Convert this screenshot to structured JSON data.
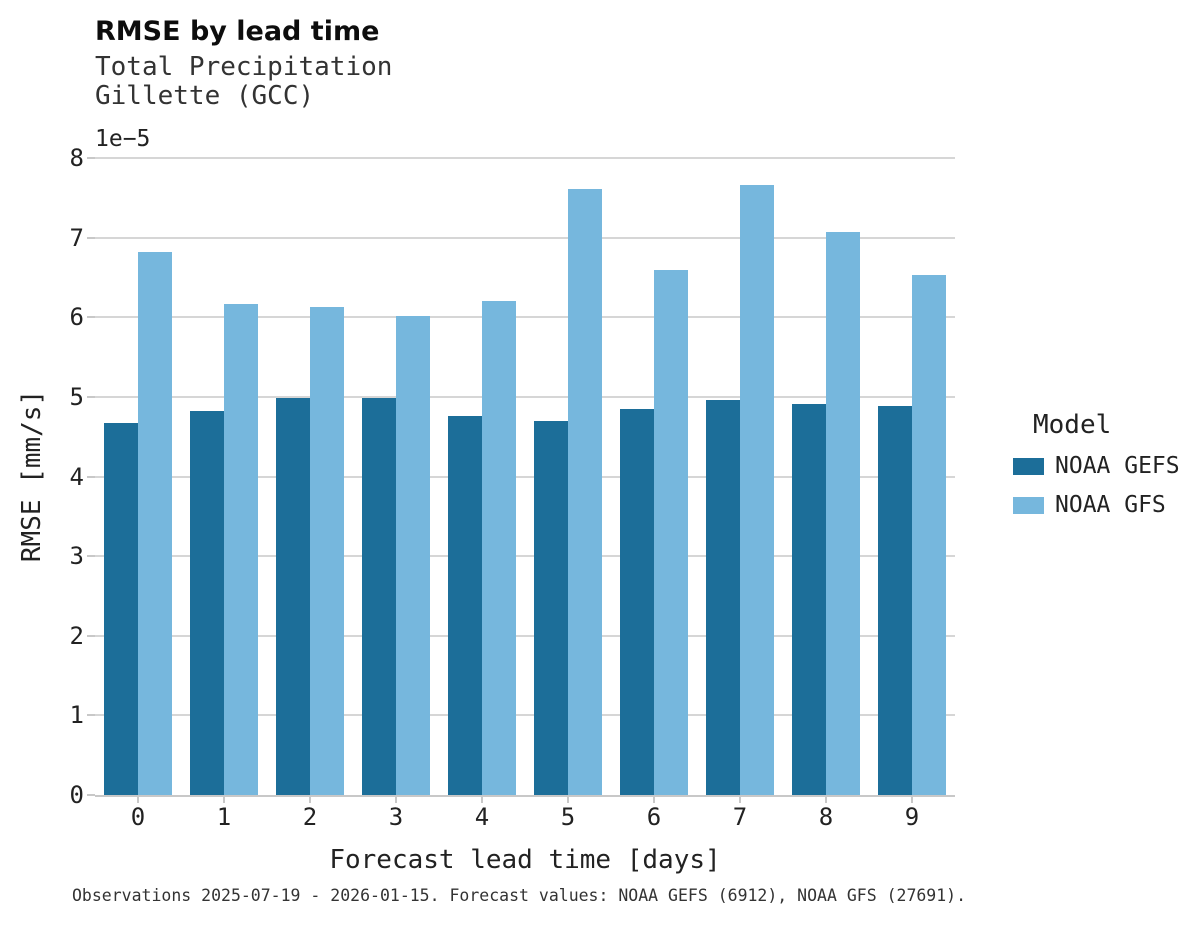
{
  "header": {
    "title": "RMSE by lead time",
    "subtitle_line1": "Total Precipitation",
    "subtitle_line2": "Gillette (GCC)"
  },
  "chart_data": {
    "type": "bar",
    "title": "RMSE by lead time",
    "subtitle": [
      "Total Precipitation",
      "Gillette (GCC)"
    ],
    "xlabel": "Forecast lead time [days]",
    "ylabel": "RMSE [mm/s]",
    "y_offset_label": "1e−5",
    "value_scale": "1e-5",
    "ylim": [
      0,
      8
    ],
    "yticks": [
      0,
      1,
      2,
      3,
      4,
      5,
      6,
      7,
      8
    ],
    "grid": true,
    "categories": [
      "0",
      "1",
      "2",
      "3",
      "4",
      "5",
      "6",
      "7",
      "8",
      "9"
    ],
    "series": [
      {
        "name": "NOAA GEFS",
        "color": "#1c6e99",
        "values": [
          4.67,
          4.82,
          4.99,
          4.98,
          4.76,
          4.7,
          4.85,
          4.96,
          4.91,
          4.88
        ]
      },
      {
        "name": "NOAA GFS",
        "color": "#76b7dd",
        "values": [
          6.82,
          6.17,
          6.13,
          6.01,
          6.21,
          7.61,
          6.59,
          7.66,
          7.07,
          6.53
        ]
      }
    ],
    "legend": {
      "title": "Model",
      "position": "right"
    }
  },
  "caption": "Observations 2025-07-19 - 2026-01-15. Forecast values: NOAA GEFS (6912), NOAA GFS (27691)."
}
